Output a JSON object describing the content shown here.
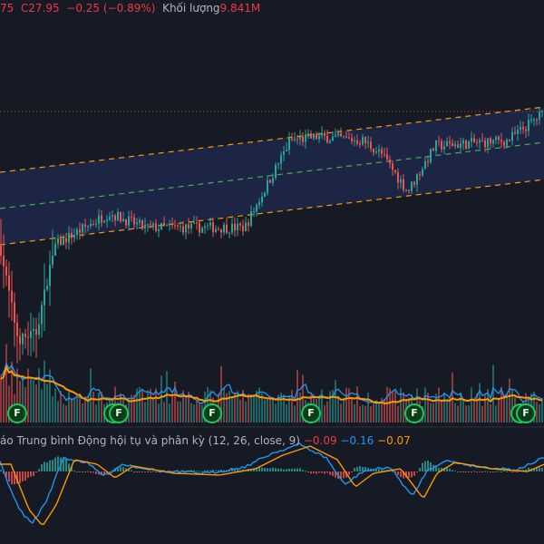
{
  "header": {
    "open_tail": "75",
    "close_label": "C27.95",
    "change": "−0.25 (−0.89%)",
    "volume_label": "Khối lượng",
    "volume_value": "9.841M"
  },
  "macd": {
    "label": "áo Trung bình Động hội tụ và phân kỳ (12, 26, close, 9)",
    "hist": "−0.09",
    "macd_value": "−0.16",
    "signal_value": "−0.07"
  },
  "markers": [
    "F",
    "F",
    "F",
    "F",
    "F",
    "F",
    "F",
    "F"
  ],
  "colors": {
    "up": "#26a69a",
    "down": "#ef5350",
    "channel": "#ff9800",
    "mid": "#4caf50",
    "fill": "#1c2645",
    "bg": "#161a25",
    "macd": "#2196f3",
    "signal": "#ff9800"
  },
  "chart_data": {
    "type": "candlestick",
    "title": "",
    "last_close": 27.95,
    "price_keypoints": [
      [
        0,
        20.6
      ],
      [
        20,
        15.4
      ],
      [
        40,
        15.8
      ],
      [
        60,
        20.6
      ],
      [
        120,
        22.4
      ],
      [
        160,
        21.6
      ],
      [
        270,
        21.6
      ],
      [
        320,
        26.4
      ],
      [
        350,
        26.6
      ],
      [
        400,
        26.4
      ],
      [
        420,
        25.7
      ],
      [
        450,
        23.6
      ],
      [
        480,
        26.1
      ],
      [
        560,
        26.4
      ],
      [
        600,
        27.95
      ]
    ],
    "channel": {
      "upper": [
        24.65,
        28.25
      ],
      "middle": [
        22.65,
        26.4
      ],
      "lower": [
        20.65,
        24.25
      ]
    },
    "volume_ma": true,
    "macd": {
      "params": [
        12,
        26,
        9
      ],
      "macd": -0.16,
      "signal": -0.07,
      "hist": -0.09
    }
  }
}
